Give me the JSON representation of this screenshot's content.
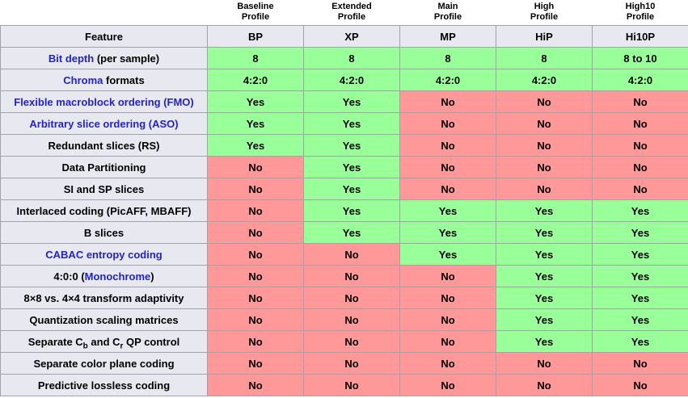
{
  "colors": {
    "yes_bg": "#99FF99",
    "no_bg": "#FF9999",
    "header_bg": "#E8E8F0",
    "link": "#2222CC",
    "border": "#A2A2AA"
  },
  "table": {
    "feature_header": "Feature",
    "profiles": [
      {
        "name_line1": "Baseline",
        "name_line2": "Profile",
        "abbr": "BP"
      },
      {
        "name_line1": "Extended",
        "name_line2": "Profile",
        "abbr": "XP"
      },
      {
        "name_line1": "Main",
        "name_line2": "Profile",
        "abbr": "MP"
      },
      {
        "name_line1": "High",
        "name_line2": "Profile",
        "abbr": "HiP"
      },
      {
        "name_line1": "High10",
        "name_line2": "Profile",
        "abbr": "Hi10P"
      }
    ],
    "rows": [
      {
        "feature": [
          {
            "t": "Bit depth",
            "link": true
          },
          {
            "t": " (per sample)"
          }
        ],
        "values": [
          "8",
          "8",
          "8",
          "8",
          "8 to 10"
        ],
        "states": [
          "y",
          "y",
          "y",
          "y",
          "y"
        ]
      },
      {
        "feature": [
          {
            "t": "Chroma",
            "link": true
          },
          {
            "t": " formats"
          }
        ],
        "values": [
          "4:2:0",
          "4:2:0",
          "4:2:0",
          "4:2:0",
          "4:2:0"
        ],
        "states": [
          "y",
          "y",
          "y",
          "y",
          "y"
        ]
      },
      {
        "feature": [
          {
            "t": "Flexible macroblock ordering (FMO)",
            "link": true
          }
        ],
        "values": [
          "Yes",
          "Yes",
          "No",
          "No",
          "No"
        ],
        "states": [
          "y",
          "y",
          "n",
          "n",
          "n"
        ]
      },
      {
        "feature": [
          {
            "t": "Arbitrary slice ordering (ASO)",
            "link": true
          }
        ],
        "values": [
          "Yes",
          "Yes",
          "No",
          "No",
          "No"
        ],
        "states": [
          "y",
          "y",
          "n",
          "n",
          "n"
        ]
      },
      {
        "feature": [
          {
            "t": "Redundant slices (RS)"
          }
        ],
        "values": [
          "Yes",
          "Yes",
          "No",
          "No",
          "No"
        ],
        "states": [
          "y",
          "y",
          "n",
          "n",
          "n"
        ]
      },
      {
        "feature": [
          {
            "t": "Data Partitioning"
          }
        ],
        "values": [
          "No",
          "Yes",
          "No",
          "No",
          "No"
        ],
        "states": [
          "n",
          "y",
          "n",
          "n",
          "n"
        ]
      },
      {
        "feature": [
          {
            "t": "SI and SP slices"
          }
        ],
        "values": [
          "No",
          "Yes",
          "No",
          "No",
          "No"
        ],
        "states": [
          "n",
          "y",
          "n",
          "n",
          "n"
        ]
      },
      {
        "feature": [
          {
            "t": "Interlaced coding (PicAFF, MBAFF)"
          }
        ],
        "values": [
          "No",
          "Yes",
          "Yes",
          "Yes",
          "Yes"
        ],
        "states": [
          "n",
          "y",
          "y",
          "y",
          "y"
        ]
      },
      {
        "feature": [
          {
            "t": "B slices"
          }
        ],
        "values": [
          "No",
          "Yes",
          "Yes",
          "Yes",
          "Yes"
        ],
        "states": [
          "n",
          "y",
          "y",
          "y",
          "y"
        ]
      },
      {
        "feature": [
          {
            "t": "CABAC entropy coding",
            "link": true
          }
        ],
        "values": [
          "No",
          "No",
          "Yes",
          "Yes",
          "Yes"
        ],
        "states": [
          "n",
          "n",
          "y",
          "y",
          "y"
        ]
      },
      {
        "feature": [
          {
            "t": "4:0:0 ("
          },
          {
            "t": "Monochrome",
            "link": true
          },
          {
            "t": ")"
          }
        ],
        "values": [
          "No",
          "No",
          "No",
          "Yes",
          "Yes"
        ],
        "states": [
          "n",
          "n",
          "n",
          "y",
          "y"
        ]
      },
      {
        "feature": [
          {
            "t": "8×8 vs. 4×4 transform adaptivity"
          }
        ],
        "values": [
          "No",
          "No",
          "No",
          "Yes",
          "Yes"
        ],
        "states": [
          "n",
          "n",
          "n",
          "y",
          "y"
        ]
      },
      {
        "feature": [
          {
            "t": "Quantization scaling matrices"
          }
        ],
        "values": [
          "No",
          "No",
          "No",
          "Yes",
          "Yes"
        ],
        "states": [
          "n",
          "n",
          "n",
          "y",
          "y"
        ]
      },
      {
        "feature": [
          {
            "t": "Separate C"
          },
          {
            "t": "b",
            "sub": true
          },
          {
            "t": " and C"
          },
          {
            "t": "r",
            "sub": true
          },
          {
            "t": " QP control"
          }
        ],
        "values": [
          "No",
          "No",
          "No",
          "Yes",
          "Yes"
        ],
        "states": [
          "n",
          "n",
          "n",
          "y",
          "y"
        ]
      },
      {
        "feature": [
          {
            "t": "Separate color plane coding"
          }
        ],
        "values": [
          "No",
          "No",
          "No",
          "No",
          "No"
        ],
        "states": [
          "n",
          "n",
          "n",
          "n",
          "n"
        ]
      },
      {
        "feature": [
          {
            "t": "Predictive lossless coding"
          }
        ],
        "values": [
          "No",
          "No",
          "No",
          "No",
          "No"
        ],
        "states": [
          "n",
          "n",
          "n",
          "n",
          "n"
        ]
      }
    ]
  }
}
